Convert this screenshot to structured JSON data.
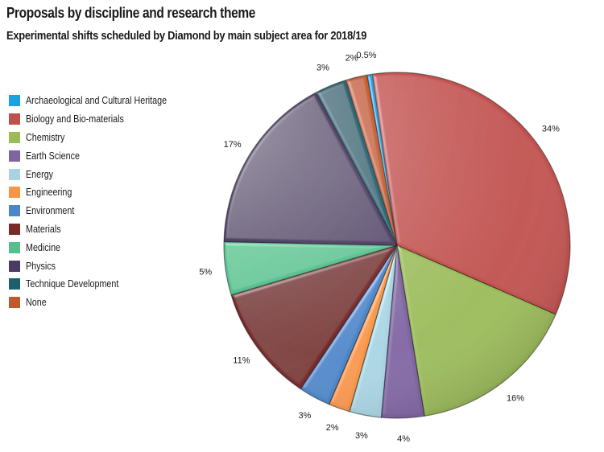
{
  "chart_data": {
    "type": "pie",
    "title": "Proposals by discipline and research theme",
    "subtitle": "Experimental shifts scheduled by Diamond by main subject area for 2018/19",
    "legend_position": "left",
    "slices": [
      {
        "label": "Archaeological and Cultural Heritage",
        "value": 0.5,
        "display": "0.5%",
        "color": "#1aa3e0"
      },
      {
        "label": "Biology and Bio-materials",
        "value": 34,
        "display": "34%",
        "color": "#c0504d"
      },
      {
        "label": "Chemistry",
        "value": 16,
        "display": "16%",
        "color": "#9bbb59"
      },
      {
        "label": "Earth Science",
        "value": 4,
        "display": "4%",
        "color": "#8064a2"
      },
      {
        "label": "Energy",
        "value": 3,
        "display": "3%",
        "color": "#a8d3e2"
      },
      {
        "label": "Engineering",
        "value": 2,
        "display": "2%",
        "color": "#f79646"
      },
      {
        "label": "Environment",
        "value": 3,
        "display": "3%",
        "color": "#4a86c8"
      },
      {
        "label": "Materials",
        "value": 11,
        "display": "11%",
        "color": "#772c2a"
      },
      {
        "label": "Medicine",
        "value": 5,
        "display": "5%",
        "color": "#55bf8e"
      },
      {
        "label": "Physics",
        "value": 17,
        "display": "17%",
        "color": "#4b3a63"
      },
      {
        "label": "Technique Development",
        "value": 3,
        "display": "3%",
        "color": "#1e5f6e"
      },
      {
        "label": "None",
        "value": 2,
        "display": "2%",
        "color": "#bf5a2a"
      }
    ]
  }
}
